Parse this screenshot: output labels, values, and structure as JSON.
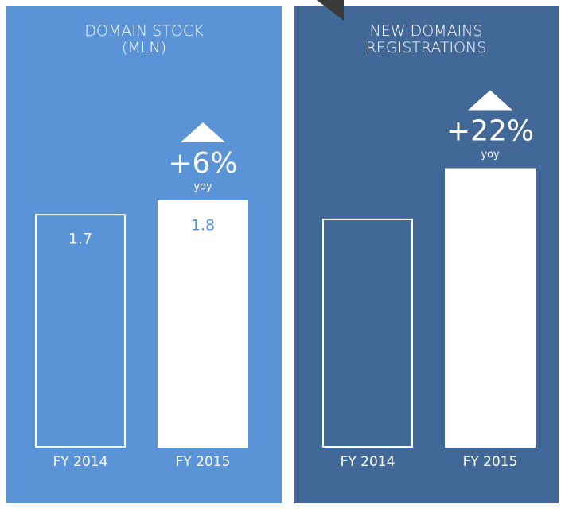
{
  "chart_data": [
    {
      "type": "bar",
      "title": "DOMAIN STOCK\n(MLN)",
      "categories": [
        "FY 2014",
        "FY 2015"
      ],
      "values": [
        1.7,
        1.8
      ],
      "ylim": [
        0,
        2.1
      ],
      "data_labels": true,
      "change": "+6%",
      "change_note": "yoy",
      "background": "#5b93d7",
      "color": "#ffffff"
    },
    {
      "type": "bar",
      "title": "NEW DOMAINS\nREGISTRATIONS",
      "categories": [
        "FY 2014",
        "FY 2015"
      ],
      "values": [
        100,
        122
      ],
      "ylim": [
        0,
        126
      ],
      "data_labels": false,
      "change": "+22%",
      "change_note": "yoy",
      "background": "#426897",
      "color": "#ffffff"
    }
  ]
}
